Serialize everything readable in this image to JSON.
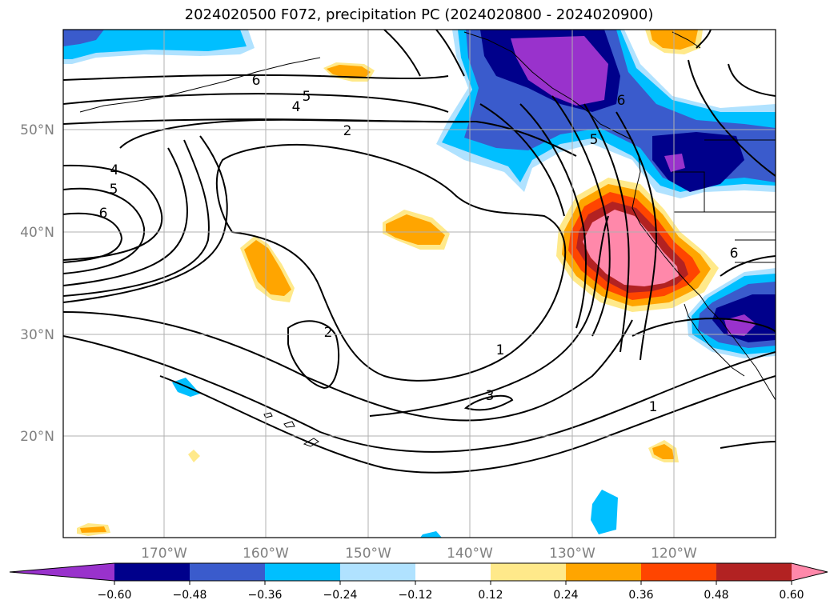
{
  "title": "2024020500 F072, precipitation PC (2024020800 - 2024020900)",
  "map": {
    "lat_labels": [
      "50°N",
      "40°N",
      "30°N",
      "20°N"
    ],
    "lon_labels": [
      "170°W",
      "160°W",
      "150°W",
      "140°W",
      "130°W",
      "120°W"
    ],
    "contour_labels": [
      "6",
      "5",
      "4",
      "2",
      "4",
      "5",
      "6",
      "2",
      "1",
      "3",
      "1",
      "6",
      "5",
      "6"
    ],
    "gridlines": true
  },
  "colorbar": {
    "ticks": [
      "−0.60",
      "−0.48",
      "−0.36",
      "−0.24",
      "−0.12",
      "0.12",
      "0.24",
      "0.36",
      "0.48",
      "0.60"
    ],
    "colors": [
      "#9932cc",
      "#00008b",
      "#3a5bcc",
      "#00bfff",
      "#b0e2ff",
      "#ffffff",
      "#ffe98a",
      "#ffa500",
      "#ff4500",
      "#b22222",
      "#ff88aa"
    ],
    "extend": "both"
  }
}
